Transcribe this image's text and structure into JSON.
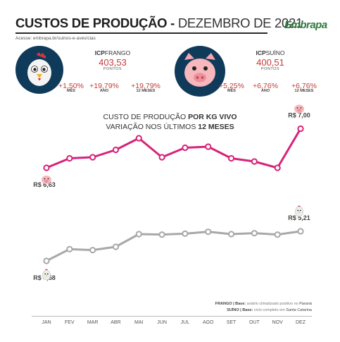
{
  "header": {
    "title_bold": "CUSTOS DE PRODUÇÃO -",
    "title_rest": "DEZEMBRO DE 2021",
    "access": "Acesse: embrapa.br/suinos-e-aves/cias",
    "logo": "Embrapa"
  },
  "icp_frango": {
    "label_bold": "ICP",
    "label": "FRANGO",
    "value": "403,53",
    "unit": "PONTOS",
    "variations": [
      {
        "value": "+1,50%",
        "label": "MÊS"
      },
      {
        "value": "+19,79%",
        "label": "ANO"
      },
      {
        "value": "+19,79%",
        "label": "12 MESES"
      }
    ],
    "icon": "chicken-icon"
  },
  "icp_suino": {
    "label_bold": "ICP",
    "label": "SUÍNO",
    "value": "400,51",
    "unit": "PONTOS",
    "variations": [
      {
        "value": "+5,25%",
        "label": "MÊS"
      },
      {
        "value": "+6,76%",
        "label": "ANO"
      },
      {
        "value": "+6,76%",
        "label": "12 MESES"
      }
    ],
    "icon": "pig-icon"
  },
  "chart_title": {
    "line1_a": "CUSTO DE PRODUÇÃO ",
    "line1_b": "POR KG VIVO",
    "line2_a": "VARIAÇÃO NOS ÚLTIMOS ",
    "line2_b": "12 MESES"
  },
  "footnote": {
    "l1_a": "FRANGO | Base: ",
    "l1_b": "aviário climatizado positivo no ",
    "l1_c": "Paraná",
    "l2_a": "SUÍNO | Base: ",
    "l2_b": "ciclo completo em ",
    "l2_c": "Santa Catarina"
  },
  "chart_data": {
    "type": "line",
    "categories": [
      "JAN",
      "FEV",
      "MAR",
      "ABR",
      "MAI",
      "JUN",
      "JUL",
      "AGO",
      "SET",
      "OUT",
      "NOV",
      "DEZ"
    ],
    "series": [
      {
        "key": "suino",
        "color": "#d6237a",
        "values": [
          6.63,
          6.72,
          6.73,
          6.8,
          6.91,
          6.73,
          6.82,
          6.83,
          6.72,
          6.69,
          6.63,
          7.0
        ],
        "start_label": "R$ 6,63",
        "end_label": "R$ 7,00",
        "icon": "pig-icon"
      },
      {
        "key": "frango",
        "color": "#a8a8a8",
        "values": [
          4.58,
          4.83,
          4.81,
          4.88,
          5.15,
          5.14,
          5.16,
          5.2,
          5.15,
          5.17,
          5.14,
          5.21
        ],
        "start_label": "R$ 4,58",
        "end_label": "R$ 5,21",
        "icon": "chicken-icon"
      }
    ]
  }
}
